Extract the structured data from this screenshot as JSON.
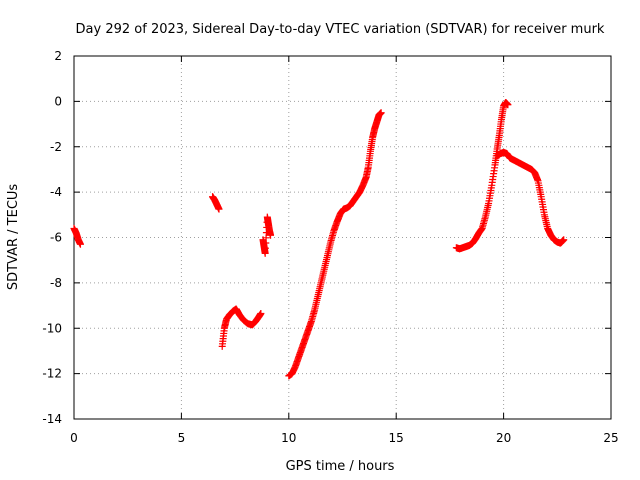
{
  "chart_data": {
    "type": "scatter",
    "title": "Day 292 of 2023, Sidereal Day-to-day VTEC variation (SDTVAR) for receiver murk",
    "xlabel": "GPS time / hours",
    "ylabel": "SDTVAR / TECUs",
    "xlim": [
      0,
      25
    ],
    "ylim": [
      -14,
      2
    ],
    "xticks": [
      0,
      5,
      10,
      15,
      20,
      25
    ],
    "yticks": [
      2,
      0,
      -2,
      -4,
      -6,
      -8,
      -10,
      -12,
      -14
    ],
    "grid": true,
    "marker": "+",
    "series_color": "#ff0000",
    "segments": [
      {
        "name": "seg-1",
        "points": [
          [
            0.0,
            -5.6
          ],
          [
            0.1,
            -5.8
          ],
          [
            0.2,
            -6.1
          ],
          [
            0.3,
            -6.3
          ]
        ]
      },
      {
        "name": "seg-2",
        "points": [
          [
            6.45,
            -4.2
          ],
          [
            6.55,
            -4.35
          ],
          [
            6.65,
            -4.55
          ],
          [
            6.75,
            -4.75
          ]
        ]
      },
      {
        "name": "seg-3",
        "points": [
          [
            6.9,
            -10.8
          ],
          [
            7.0,
            -10.0
          ],
          [
            7.1,
            -9.6
          ],
          [
            7.25,
            -9.4
          ],
          [
            7.4,
            -9.25
          ],
          [
            7.55,
            -9.15
          ],
          [
            7.7,
            -9.4
          ],
          [
            7.9,
            -9.65
          ],
          [
            8.1,
            -9.8
          ],
          [
            8.3,
            -9.85
          ],
          [
            8.45,
            -9.7
          ],
          [
            8.6,
            -9.5
          ],
          [
            8.7,
            -9.35
          ]
        ]
      },
      {
        "name": "seg-4",
        "points": [
          [
            8.8,
            -6.1
          ],
          [
            8.85,
            -6.4
          ],
          [
            8.9,
            -6.7
          ],
          [
            9.0,
            -5.1
          ],
          [
            9.05,
            -5.4
          ],
          [
            9.1,
            -5.7
          ],
          [
            9.15,
            -5.9
          ]
        ]
      },
      {
        "name": "seg-5",
        "points": [
          [
            10.0,
            -12.1
          ],
          [
            10.15,
            -12.0
          ],
          [
            10.3,
            -11.7
          ],
          [
            10.45,
            -11.3
          ],
          [
            10.6,
            -10.9
          ],
          [
            10.75,
            -10.5
          ],
          [
            10.9,
            -10.1
          ],
          [
            11.05,
            -9.7
          ],
          [
            11.2,
            -9.2
          ],
          [
            11.35,
            -8.6
          ],
          [
            11.5,
            -8.0
          ],
          [
            11.65,
            -7.4
          ],
          [
            11.8,
            -6.8
          ],
          [
            11.95,
            -6.2
          ],
          [
            12.1,
            -5.7
          ],
          [
            12.25,
            -5.3
          ],
          [
            12.4,
            -4.95
          ],
          [
            12.55,
            -4.75
          ],
          [
            12.7,
            -4.7
          ],
          [
            12.85,
            -4.6
          ],
          [
            13.0,
            -4.4
          ],
          [
            13.15,
            -4.2
          ],
          [
            13.3,
            -4.0
          ],
          [
            13.45,
            -3.7
          ],
          [
            13.6,
            -3.35
          ],
          [
            13.7,
            -2.9
          ],
          [
            13.8,
            -2.2
          ],
          [
            13.9,
            -1.6
          ],
          [
            14.0,
            -1.2
          ],
          [
            14.1,
            -0.9
          ],
          [
            14.2,
            -0.6
          ],
          [
            14.3,
            -0.5
          ]
        ]
      },
      {
        "name": "seg-6",
        "points": [
          [
            17.8,
            -6.45
          ],
          [
            17.95,
            -6.5
          ],
          [
            18.1,
            -6.45
          ],
          [
            18.25,
            -6.4
          ],
          [
            18.4,
            -6.35
          ],
          [
            18.55,
            -6.25
          ],
          [
            18.7,
            -6.05
          ],
          [
            18.85,
            -5.8
          ],
          [
            19.0,
            -5.6
          ],
          [
            19.15,
            -5.1
          ],
          [
            19.3,
            -4.5
          ],
          [
            19.45,
            -3.7
          ],
          [
            19.6,
            -2.8
          ],
          [
            19.7,
            -2.1
          ],
          [
            19.8,
            -1.5
          ],
          [
            19.9,
            -0.8
          ],
          [
            20.0,
            -0.2
          ],
          [
            20.1,
            -0.05
          ],
          [
            20.2,
            -0.15
          ]
        ]
      },
      {
        "name": "seg-7",
        "points": [
          [
            19.7,
            -2.4
          ],
          [
            19.85,
            -2.3
          ],
          [
            20.0,
            -2.25
          ],
          [
            20.15,
            -2.3
          ],
          [
            20.3,
            -2.5
          ],
          [
            20.5,
            -2.6
          ],
          [
            20.7,
            -2.7
          ],
          [
            20.9,
            -2.8
          ],
          [
            21.1,
            -2.9
          ],
          [
            21.3,
            -3.0
          ],
          [
            21.45,
            -3.15
          ],
          [
            21.6,
            -3.5
          ],
          [
            21.75,
            -4.2
          ],
          [
            21.9,
            -5.0
          ],
          [
            22.05,
            -5.6
          ],
          [
            22.2,
            -5.9
          ],
          [
            22.35,
            -6.1
          ],
          [
            22.5,
            -6.2
          ],
          [
            22.65,
            -6.25
          ],
          [
            22.8,
            -6.1
          ]
        ]
      }
    ]
  }
}
